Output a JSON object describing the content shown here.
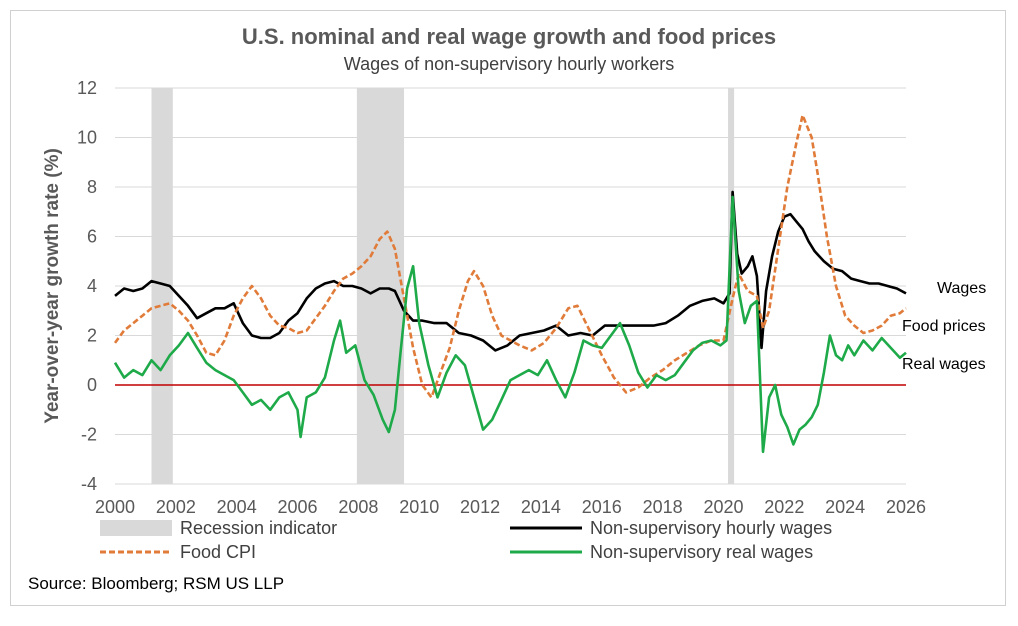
{
  "chart_data": {
    "type": "line",
    "title": "U.S. nominal and real wage growth and food prices",
    "subtitle": "Wages of non-supervisory hourly workers",
    "ylabel": "Year-over-year growth rate (%)",
    "xlabel": "",
    "xlim": [
      2000,
      2026
    ],
    "ylim": [
      -4,
      12
    ],
    "x_ticks": [
      "2000",
      "2002",
      "2004",
      "2006",
      "2008",
      "2010",
      "2012",
      "2014",
      "2016",
      "2018",
      "2020",
      "2022",
      "2024",
      "2026"
    ],
    "y_ticks": [
      "-4",
      "-2",
      "0",
      "2",
      "4",
      "6",
      "8",
      "10",
      "12"
    ],
    "grid": true,
    "source": "Source: Bloomberg; RSM US LLP",
    "recessions": [
      [
        2001.2,
        2001.9
      ],
      [
        2007.95,
        2009.5
      ],
      [
        2020.15,
        2020.35
      ]
    ],
    "series": [
      {
        "name": "Non-supervisory hourly wages",
        "end_label": "Wages",
        "color": "#000000",
        "dash": "solid",
        "points": [
          [
            2000,
            3.6
          ],
          [
            2000.3,
            3.9
          ],
          [
            2000.6,
            3.8
          ],
          [
            2000.9,
            3.9
          ],
          [
            2001.2,
            4.2
          ],
          [
            2001.5,
            4.1
          ],
          [
            2001.8,
            4.0
          ],
          [
            2002.1,
            3.6
          ],
          [
            2002.4,
            3.2
          ],
          [
            2002.7,
            2.7
          ],
          [
            2003,
            2.9
          ],
          [
            2003.3,
            3.1
          ],
          [
            2003.6,
            3.1
          ],
          [
            2003.9,
            3.3
          ],
          [
            2004.2,
            2.5
          ],
          [
            2004.5,
            2.0
          ],
          [
            2004.8,
            1.9
          ],
          [
            2005.1,
            1.9
          ],
          [
            2005.4,
            2.1
          ],
          [
            2005.7,
            2.6
          ],
          [
            2006,
            2.9
          ],
          [
            2006.3,
            3.5
          ],
          [
            2006.6,
            3.9
          ],
          [
            2006.9,
            4.1
          ],
          [
            2007.2,
            4.2
          ],
          [
            2007.5,
            4.0
          ],
          [
            2007.8,
            4.0
          ],
          [
            2008.1,
            3.9
          ],
          [
            2008.4,
            3.7
          ],
          [
            2008.7,
            3.9
          ],
          [
            2009,
            3.9
          ],
          [
            2009.2,
            3.8
          ],
          [
            2009.5,
            3.0
          ],
          [
            2009.8,
            2.6
          ],
          [
            2010.1,
            2.6
          ],
          [
            2010.5,
            2.5
          ],
          [
            2010.9,
            2.5
          ],
          [
            2011.3,
            2.1
          ],
          [
            2011.7,
            2.0
          ],
          [
            2012.1,
            1.8
          ],
          [
            2012.5,
            1.4
          ],
          [
            2012.9,
            1.6
          ],
          [
            2013.3,
            2.0
          ],
          [
            2013.7,
            2.1
          ],
          [
            2014.1,
            2.2
          ],
          [
            2014.5,
            2.4
          ],
          [
            2014.9,
            2.0
          ],
          [
            2015.3,
            2.1
          ],
          [
            2015.7,
            2.0
          ],
          [
            2016.1,
            2.4
          ],
          [
            2016.5,
            2.4
          ],
          [
            2016.9,
            2.4
          ],
          [
            2017.3,
            2.4
          ],
          [
            2017.7,
            2.4
          ],
          [
            2018.1,
            2.5
          ],
          [
            2018.5,
            2.8
          ],
          [
            2018.9,
            3.2
          ],
          [
            2019.3,
            3.4
          ],
          [
            2019.7,
            3.5
          ],
          [
            2020.0,
            3.3
          ],
          [
            2020.2,
            3.7
          ],
          [
            2020.3,
            7.8
          ],
          [
            2020.45,
            5.3
          ],
          [
            2020.6,
            4.5
          ],
          [
            2020.8,
            4.8
          ],
          [
            2020.95,
            5.2
          ],
          [
            2021.1,
            4.4
          ],
          [
            2021.25,
            1.5
          ],
          [
            2021.4,
            3.8
          ],
          [
            2021.6,
            5.2
          ],
          [
            2021.8,
            6.2
          ],
          [
            2022.0,
            6.8
          ],
          [
            2022.2,
            6.9
          ],
          [
            2022.4,
            6.6
          ],
          [
            2022.6,
            6.3
          ],
          [
            2022.8,
            5.8
          ],
          [
            2023.0,
            5.4
          ],
          [
            2023.3,
            5.0
          ],
          [
            2023.6,
            4.7
          ],
          [
            2023.9,
            4.6
          ],
          [
            2024.2,
            4.3
          ],
          [
            2024.5,
            4.2
          ],
          [
            2024.8,
            4.1
          ],
          [
            2025.1,
            4.1
          ],
          [
            2025.4,
            4.0
          ],
          [
            2025.7,
            3.9
          ],
          [
            2026.0,
            3.7
          ]
        ]
      },
      {
        "name": "Food CPI",
        "end_label": "Food prices",
        "color": "#e07b39",
        "dash": "dashed",
        "points": [
          [
            2000,
            1.7
          ],
          [
            2000.3,
            2.2
          ],
          [
            2000.6,
            2.5
          ],
          [
            2000.9,
            2.8
          ],
          [
            2001.2,
            3.1
          ],
          [
            2001.5,
            3.2
          ],
          [
            2001.8,
            3.3
          ],
          [
            2002.1,
            3.0
          ],
          [
            2002.4,
            2.6
          ],
          [
            2002.7,
            2.0
          ],
          [
            2003,
            1.3
          ],
          [
            2003.3,
            1.2
          ],
          [
            2003.6,
            1.8
          ],
          [
            2003.9,
            2.8
          ],
          [
            2004.2,
            3.5
          ],
          [
            2004.5,
            4.0
          ],
          [
            2004.8,
            3.5
          ],
          [
            2005.1,
            2.8
          ],
          [
            2005.4,
            2.4
          ],
          [
            2005.7,
            2.3
          ],
          [
            2006,
            2.1
          ],
          [
            2006.3,
            2.2
          ],
          [
            2006.6,
            2.7
          ],
          [
            2006.9,
            3.2
          ],
          [
            2007.2,
            3.8
          ],
          [
            2007.5,
            4.3
          ],
          [
            2007.8,
            4.5
          ],
          [
            2008.1,
            4.8
          ],
          [
            2008.4,
            5.2
          ],
          [
            2008.7,
            5.9
          ],
          [
            2008.95,
            6.2
          ],
          [
            2009.2,
            5.5
          ],
          [
            2009.5,
            3.5
          ],
          [
            2009.8,
            1.5
          ],
          [
            2010.1,
            0.0
          ],
          [
            2010.4,
            -0.5
          ],
          [
            2010.7,
            0.5
          ],
          [
            2011.0,
            1.5
          ],
          [
            2011.3,
            3.0
          ],
          [
            2011.6,
            4.2
          ],
          [
            2011.8,
            4.6
          ],
          [
            2012.1,
            4.0
          ],
          [
            2012.4,
            2.8
          ],
          [
            2012.7,
            2.0
          ],
          [
            2013.0,
            1.8
          ],
          [
            2013.3,
            1.6
          ],
          [
            2013.7,
            1.4
          ],
          [
            2014.1,
            1.7
          ],
          [
            2014.5,
            2.3
          ],
          [
            2014.9,
            3.1
          ],
          [
            2015.2,
            3.2
          ],
          [
            2015.6,
            2.2
          ],
          [
            2016.0,
            1.2
          ],
          [
            2016.4,
            0.3
          ],
          [
            2016.8,
            -0.3
          ],
          [
            2017.2,
            -0.1
          ],
          [
            2017.6,
            0.3
          ],
          [
            2018.0,
            0.6
          ],
          [
            2018.4,
            1.0
          ],
          [
            2018.8,
            1.3
          ],
          [
            2019.2,
            1.6
          ],
          [
            2019.6,
            1.8
          ],
          [
            2020.0,
            1.8
          ],
          [
            2020.3,
            3.5
          ],
          [
            2020.5,
            4.5
          ],
          [
            2020.8,
            3.8
          ],
          [
            2021.1,
            3.6
          ],
          [
            2021.3,
            2.3
          ],
          [
            2021.5,
            3.0
          ],
          [
            2021.8,
            5.5
          ],
          [
            2022.1,
            8.0
          ],
          [
            2022.4,
            9.8
          ],
          [
            2022.6,
            10.9
          ],
          [
            2022.9,
            10.0
          ],
          [
            2023.1,
            8.5
          ],
          [
            2023.4,
            6.0
          ],
          [
            2023.7,
            4.0
          ],
          [
            2024.0,
            2.8
          ],
          [
            2024.3,
            2.4
          ],
          [
            2024.6,
            2.1
          ],
          [
            2024.9,
            2.2
          ],
          [
            2025.2,
            2.4
          ],
          [
            2025.5,
            2.8
          ],
          [
            2025.8,
            2.9
          ],
          [
            2026.0,
            3.1
          ]
        ]
      },
      {
        "name": "Non-supervisory real wages",
        "end_label": "Real wages",
        "color": "#1faa4a",
        "dash": "solid",
        "points": [
          [
            2000,
            0.9
          ],
          [
            2000.3,
            0.3
          ],
          [
            2000.6,
            0.6
          ],
          [
            2000.9,
            0.4
          ],
          [
            2001.2,
            1.0
          ],
          [
            2001.5,
            0.6
          ],
          [
            2001.8,
            1.2
          ],
          [
            2002.1,
            1.6
          ],
          [
            2002.4,
            2.1
          ],
          [
            2002.7,
            1.5
          ],
          [
            2003.0,
            0.9
          ],
          [
            2003.3,
            0.6
          ],
          [
            2003.6,
            0.4
          ],
          [
            2003.9,
            0.2
          ],
          [
            2004.2,
            -0.3
          ],
          [
            2004.5,
            -0.8
          ],
          [
            2004.8,
            -0.6
          ],
          [
            2005.1,
            -1.0
          ],
          [
            2005.4,
            -0.5
          ],
          [
            2005.7,
            -0.3
          ],
          [
            2006.0,
            -1.0
          ],
          [
            2006.1,
            -2.1
          ],
          [
            2006.3,
            -0.5
          ],
          [
            2006.6,
            -0.3
          ],
          [
            2006.9,
            0.3
          ],
          [
            2007.2,
            1.8
          ],
          [
            2007.4,
            2.6
          ],
          [
            2007.6,
            1.3
          ],
          [
            2007.9,
            1.6
          ],
          [
            2008.2,
            0.2
          ],
          [
            2008.5,
            -0.4
          ],
          [
            2008.8,
            -1.4
          ],
          [
            2009.0,
            -1.9
          ],
          [
            2009.2,
            -1.0
          ],
          [
            2009.4,
            1.5
          ],
          [
            2009.6,
            3.9
          ],
          [
            2009.8,
            4.8
          ],
          [
            2010.0,
            2.5
          ],
          [
            2010.3,
            0.8
          ],
          [
            2010.6,
            -0.5
          ],
          [
            2010.9,
            0.5
          ],
          [
            2011.2,
            1.2
          ],
          [
            2011.5,
            0.8
          ],
          [
            2011.8,
            -0.5
          ],
          [
            2012.1,
            -1.8
          ],
          [
            2012.4,
            -1.4
          ],
          [
            2012.7,
            -0.6
          ],
          [
            2013.0,
            0.2
          ],
          [
            2013.3,
            0.4
          ],
          [
            2013.6,
            0.6
          ],
          [
            2013.9,
            0.4
          ],
          [
            2014.2,
            1.0
          ],
          [
            2014.5,
            0.2
          ],
          [
            2014.8,
            -0.5
          ],
          [
            2015.1,
            0.5
          ],
          [
            2015.4,
            1.8
          ],
          [
            2015.7,
            1.6
          ],
          [
            2016.0,
            1.5
          ],
          [
            2016.3,
            2.0
          ],
          [
            2016.6,
            2.5
          ],
          [
            2016.9,
            1.6
          ],
          [
            2017.2,
            0.5
          ],
          [
            2017.5,
            -0.1
          ],
          [
            2017.8,
            0.4
          ],
          [
            2018.1,
            0.2
          ],
          [
            2018.4,
            0.4
          ],
          [
            2018.7,
            0.9
          ],
          [
            2019.0,
            1.4
          ],
          [
            2019.3,
            1.7
          ],
          [
            2019.6,
            1.8
          ],
          [
            2019.9,
            1.6
          ],
          [
            2020.1,
            1.8
          ],
          [
            2020.3,
            7.6
          ],
          [
            2020.5,
            3.8
          ],
          [
            2020.7,
            2.5
          ],
          [
            2020.9,
            3.2
          ],
          [
            2021.1,
            3.4
          ],
          [
            2021.3,
            -2.7
          ],
          [
            2021.5,
            -0.5
          ],
          [
            2021.7,
            0.0
          ],
          [
            2021.9,
            -1.2
          ],
          [
            2022.1,
            -1.7
          ],
          [
            2022.3,
            -2.4
          ],
          [
            2022.5,
            -1.8
          ],
          [
            2022.7,
            -1.6
          ],
          [
            2022.9,
            -1.3
          ],
          [
            2023.1,
            -0.8
          ],
          [
            2023.3,
            0.5
          ],
          [
            2023.5,
            2.0
          ],
          [
            2023.7,
            1.2
          ],
          [
            2023.9,
            1.0
          ],
          [
            2024.1,
            1.6
          ],
          [
            2024.3,
            1.2
          ],
          [
            2024.6,
            1.8
          ],
          [
            2024.9,
            1.4
          ],
          [
            2025.2,
            1.9
          ],
          [
            2025.5,
            1.5
          ],
          [
            2025.8,
            1.1
          ],
          [
            2026.0,
            1.3
          ]
        ]
      }
    ],
    "legend": [
      {
        "label": "Recession indicator",
        "kind": "bar",
        "color": "#d9d9d9"
      },
      {
        "label": "Non-supervisory hourly wages",
        "kind": "line",
        "color": "#000000"
      },
      {
        "label": "Food CPI",
        "kind": "dashed",
        "color": "#e07b39"
      },
      {
        "label": "Non-supervisory real wages",
        "kind": "line",
        "color": "#1faa4a"
      }
    ],
    "zero_line_color": "#c00000"
  }
}
